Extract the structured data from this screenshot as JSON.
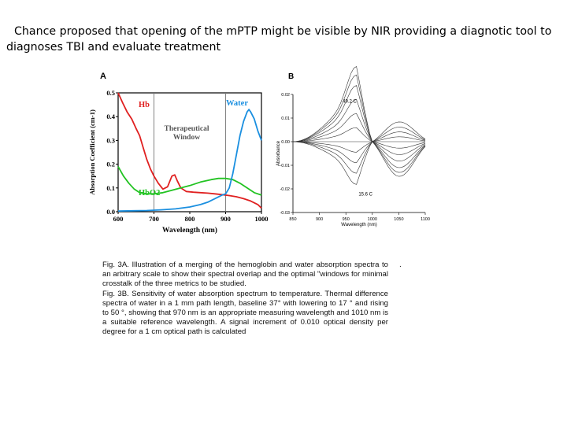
{
  "slide": {
    "heading": "Chance proposed that opening of the mPTP might be visible by NIR providing a diagnotic tool to diagnoses TBI and evaluate treatment",
    "caption_lines": [
      "Fig. 3A. Illustration of a merging of the hemoglobin and water absorption spectra to an arbitrary scale to show their spectral overlap and the optimal \"windows for minimal crosstalk of the three metrics to be studied.",
      "Fig. 3B. Sensitivity of water absorption spectrum to temperature. Thermal difference spectra of water in a 1 mm path length, baseline 37° with lowering to 17 ° and rising to 50 °, showing that 970 nm is an appropriate measuring wavelength and 1010 nm is a suitable reference wavelength. A signal increment of 0.010 optical density per degree for a 1 cm optical path is calculated"
    ],
    "caption_trailing_mark": "."
  },
  "chart_data": [
    {
      "panel_label": "A",
      "type": "line",
      "xlabel": "Wavelength (nm)",
      "ylabel": "Absorption Coefficient (cm-1)",
      "xlim": [
        600,
        1000
      ],
      "ylim": [
        0,
        0.5
      ],
      "x_ticks": [
        600,
        700,
        800,
        900,
        1000
      ],
      "y_ticks": [
        0.0,
        0.1,
        0.2,
        0.3,
        0.4,
        0.5
      ],
      "annotation": {
        "text": [
          "Therapeutical",
          "Window"
        ],
        "x_range": [
          700,
          900
        ]
      },
      "series": [
        {
          "name": "Hb",
          "color": "#e02020",
          "x": [
            600,
            612,
            625,
            638,
            650,
            660,
            670,
            680,
            690,
            700,
            712,
            725,
            738,
            750,
            758,
            765,
            775,
            790,
            810,
            830,
            850,
            870,
            890,
            910,
            930,
            950,
            970,
            990,
            1000
          ],
          "y": [
            0.5,
            0.46,
            0.42,
            0.39,
            0.35,
            0.32,
            0.27,
            0.22,
            0.18,
            0.15,
            0.12,
            0.095,
            0.105,
            0.15,
            0.155,
            0.13,
            0.1,
            0.085,
            0.082,
            0.08,
            0.078,
            0.075,
            0.072,
            0.068,
            0.063,
            0.055,
            0.045,
            0.03,
            0.015
          ]
        },
        {
          "name": "HbO2",
          "color": "#22c322",
          "x": [
            600,
            615,
            630,
            645,
            660,
            680,
            700,
            725,
            750,
            775,
            800,
            830,
            860,
            880,
            900,
            920,
            940,
            960,
            980,
            1000
          ],
          "y": [
            0.19,
            0.15,
            0.12,
            0.095,
            0.08,
            0.075,
            0.075,
            0.08,
            0.09,
            0.1,
            0.11,
            0.125,
            0.135,
            0.14,
            0.14,
            0.135,
            0.12,
            0.1,
            0.08,
            0.07
          ]
        },
        {
          "name": "Water",
          "color": "#1a8fe0",
          "x": [
            600,
            640,
            680,
            720,
            760,
            800,
            830,
            850,
            870,
            890,
            900,
            910,
            920,
            930,
            940,
            950,
            960,
            965,
            970,
            980,
            990,
            1000
          ],
          "y": [
            0.003,
            0.004,
            0.005,
            0.008,
            0.012,
            0.02,
            0.03,
            0.04,
            0.055,
            0.07,
            0.075,
            0.1,
            0.16,
            0.24,
            0.32,
            0.38,
            0.42,
            0.43,
            0.42,
            0.39,
            0.34,
            0.3
          ]
        }
      ]
    },
    {
      "panel_label": "B",
      "type": "line",
      "xlabel": "Wavelength (nm)",
      "ylabel": "Absorbance",
      "xlim": [
        850,
        1100
      ],
      "ylim": [
        -0.03,
        0.02
      ],
      "x_ticks": [
        850,
        900,
        950,
        1000,
        1050,
        1100
      ],
      "y_ticks": [
        -0.03,
        -0.02,
        -0.01,
        0.0,
        0.01,
        0.02
      ],
      "curve_labels": [
        {
          "text": "49.2 C",
          "x": 944,
          "y": 0.0165
        },
        {
          "text": "15.6 C",
          "x": 974,
          "y": -0.0228
        }
      ],
      "family": {
        "temperatures": [
          49.2,
          46,
          43,
          40,
          37,
          33,
          29,
          25,
          21,
          18,
          15.6
        ],
        "reference_temperature": 37,
        "crossing_nm": 1000,
        "peak_nm": 970,
        "lobe_nm": 1045,
        "amplitude_per_degree": 0.00175,
        "lobe_ratio": 0.25,
        "x_start_nm": 850,
        "x_end_nm": 1100
      }
    }
  ]
}
